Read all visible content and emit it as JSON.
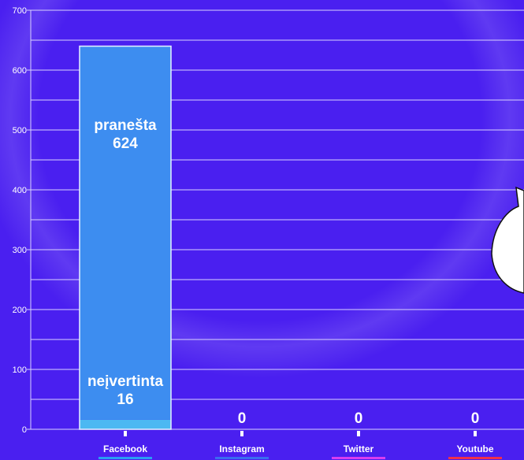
{
  "chart_data": {
    "type": "bar",
    "stacked": true,
    "categories": [
      "Facebook",
      "Instagram",
      "Twitter",
      "Youtube"
    ],
    "category_colors": [
      "#2a9df4",
      "#3a6cf0",
      "#d93cf0",
      "#f0304a"
    ],
    "series": [
      {
        "name": "neįvertinta",
        "values": [
          16,
          0,
          0,
          0
        ],
        "color": "#4cb8f2"
      },
      {
        "name": "pranešta",
        "values": [
          624,
          0,
          0,
          0
        ],
        "color": "#3d8df0"
      }
    ],
    "bar_labels": [
      {
        "category": "Facebook",
        "series": "pranešta",
        "text": "pranešta",
        "value": "624"
      },
      {
        "category": "Facebook",
        "series": "neįvertinta",
        "text": "neįvertinta",
        "value": "16"
      },
      {
        "category": "Instagram",
        "text": "",
        "value": "0"
      },
      {
        "category": "Twitter",
        "text": "",
        "value": "0"
      },
      {
        "category": "Youtube",
        "text": "",
        "value": "0"
      }
    ],
    "ylim": [
      0,
      700
    ],
    "yticks": [
      0,
      100,
      200,
      300,
      400,
      500,
      600,
      700
    ],
    "grid": true,
    "colors": {
      "background": "#4a1ff0",
      "grid": "#d8d0ff",
      "text": "#ffffff"
    },
    "title": "",
    "xlabel": "",
    "ylabel": ""
  }
}
